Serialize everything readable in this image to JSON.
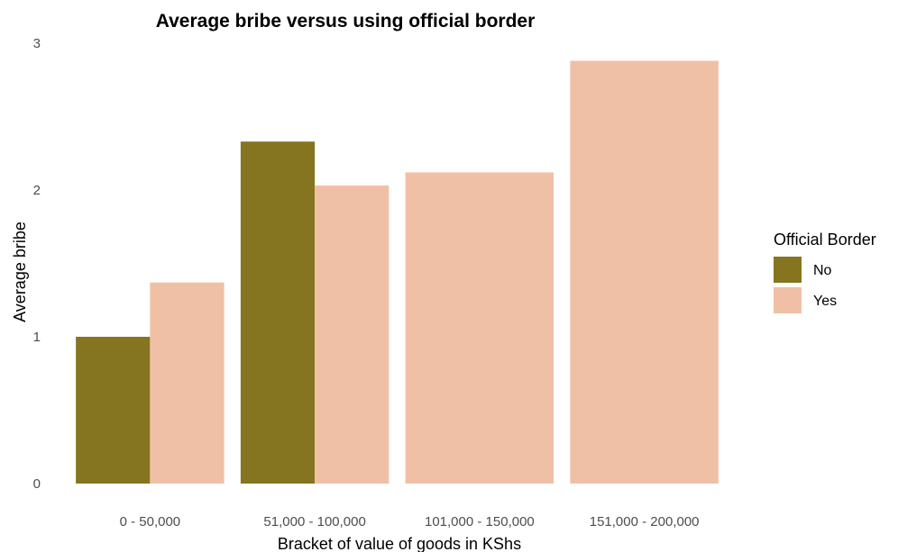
{
  "chart_data": {
    "type": "bar",
    "title": "Average bribe versus using official border",
    "xlabel": "Bracket of value of goods in KShs",
    "ylabel": "Average bribe",
    "categories": [
      "0 - 50,000",
      "51,000 - 100,000",
      "101,000 - 150,000",
      "151,000 - 200,000"
    ],
    "ylim": [
      0,
      3
    ],
    "yticks": [
      "0",
      "1",
      "2",
      "3"
    ],
    "grid": false,
    "legend": {
      "title": "Official Border",
      "position": "right"
    },
    "series": [
      {
        "name": "No",
        "color": "#857520",
        "values": [
          1.0,
          2.33,
          null,
          null
        ]
      },
      {
        "name": "Yes",
        "color": "#f0c0a6",
        "values": [
          1.37,
          2.03,
          2.12,
          2.88
        ]
      }
    ]
  }
}
